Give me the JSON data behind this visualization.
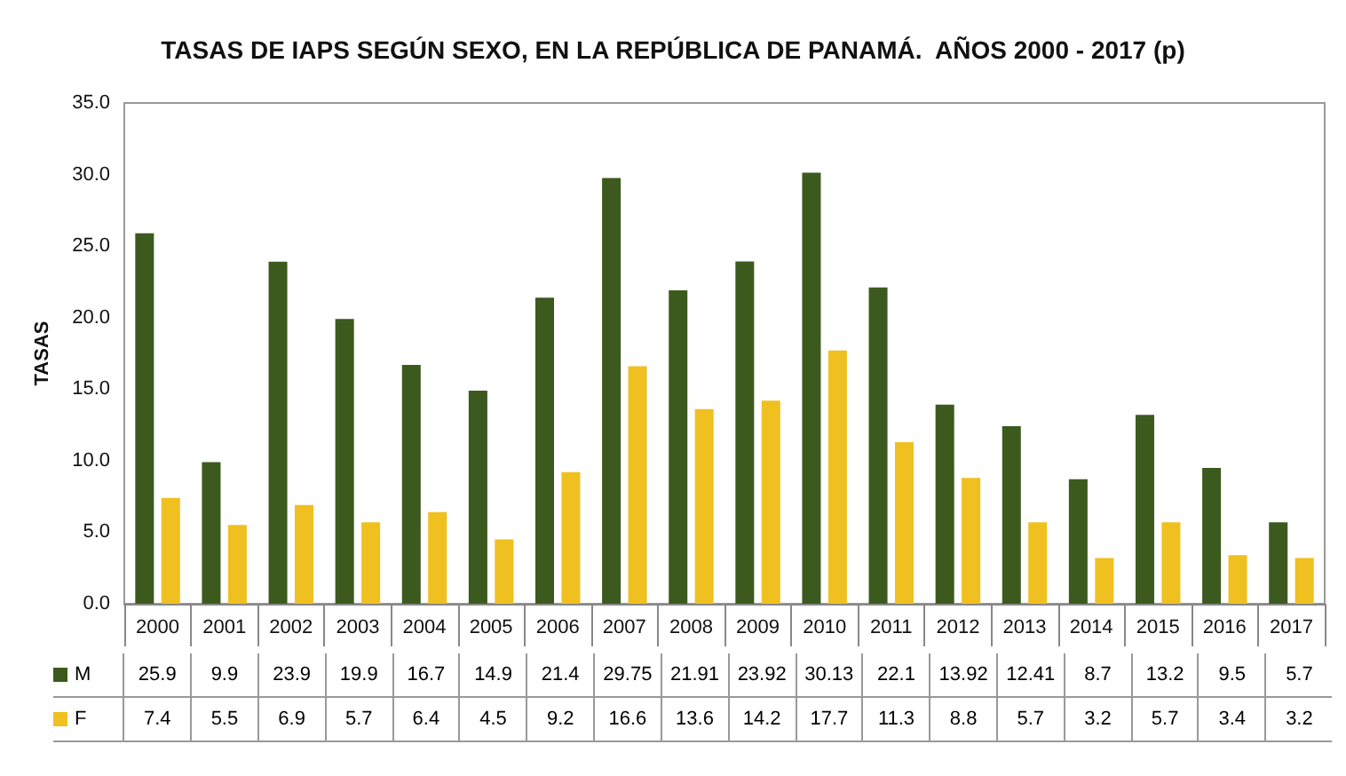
{
  "chart_data": {
    "type": "bar",
    "title": "TASAS DE IAPS SEGÚN SEXO, EN LA REPÚBLICA DE PANAMÁ.  AÑOS 2000 - 2017 (p)",
    "ylabel": "TASAS",
    "categories": [
      "2000",
      "2001",
      "2002",
      "2003",
      "2004",
      "2005",
      "2006",
      "2007",
      "2008",
      "2009",
      "2010",
      "2011",
      "2012",
      "2013",
      "2014",
      "2015",
      "2016",
      "2017"
    ],
    "series": [
      {
        "name": "M",
        "color": "#3d5a1e",
        "values": [
          25.9,
          9.9,
          23.9,
          19.9,
          16.7,
          14.9,
          21.4,
          29.75,
          21.91,
          23.92,
          30.13,
          22.1,
          13.92,
          12.41,
          8.7,
          13.2,
          9.5,
          5.7
        ]
      },
      {
        "name": "F",
        "color": "#f0c020",
        "values": [
          7.4,
          5.5,
          6.9,
          5.7,
          6.4,
          4.5,
          9.2,
          16.6,
          13.6,
          14.2,
          17.7,
          11.3,
          8.8,
          5.7,
          3.2,
          5.7,
          3.4,
          3.2
        ]
      }
    ],
    "ylim": [
      0,
      35
    ],
    "yticks": [
      {
        "value": 0,
        "label": "0.0"
      },
      {
        "value": 5,
        "label": "5.0"
      },
      {
        "value": 10,
        "label": "10.0"
      },
      {
        "value": 15,
        "label": "15.0"
      },
      {
        "value": 20,
        "label": "20.0"
      },
      {
        "value": 25,
        "label": "25.0"
      },
      {
        "value": 30,
        "label": "30.0"
      },
      {
        "value": 35,
        "label": "35.0"
      }
    ],
    "grid": false,
    "legend": "bottom left",
    "data_labels": true
  }
}
